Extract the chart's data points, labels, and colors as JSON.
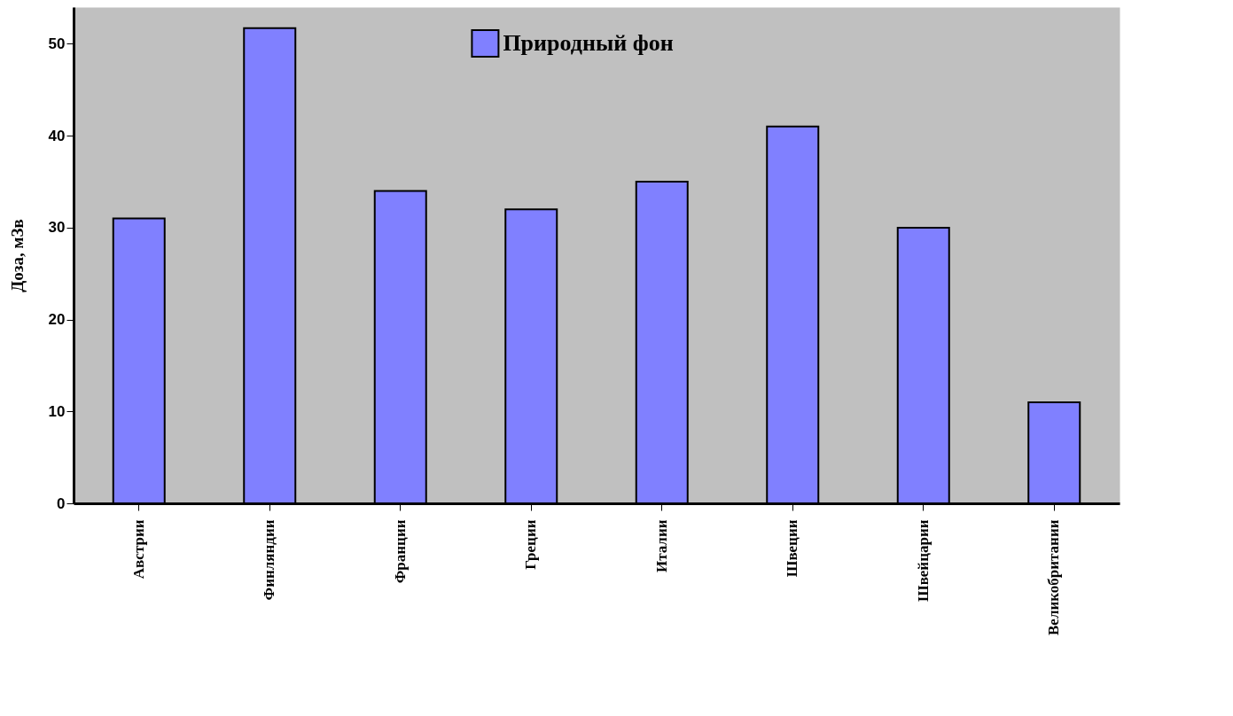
{
  "chart_data": {
    "type": "bar",
    "ylabel": "Доза, мЗв",
    "categories": [
      "Австрии",
      "Финляндии",
      "Франции",
      "Греции",
      "Италии",
      "Швеции",
      "Швейцарии",
      "Великобритании"
    ],
    "series": [
      {
        "name": "Природный фон",
        "color": "#8080ff",
        "values": [
          31,
          51.7,
          34,
          32,
          35,
          41,
          30,
          11
        ]
      }
    ],
    "ylim": [
      0,
      54
    ],
    "yticks": [
      0,
      10,
      20,
      30,
      40,
      50
    ],
    "grid": false,
    "legend": "top"
  }
}
